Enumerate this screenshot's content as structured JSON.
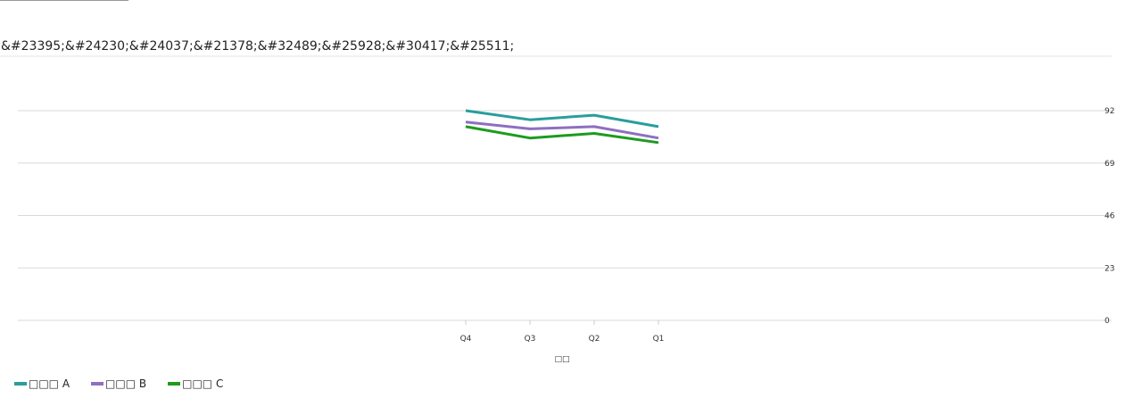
{
  "chart_data": {
    "type": "line",
    "title": "&#23395;&#24230;&#24037;&#21378;&#32489;&#25928;&#30417;&#25511;",
    "categories": [
      "Q4",
      "Q3",
      "Q2",
      "Q1"
    ],
    "xlabel": "□□",
    "ylabel": "",
    "y_ticks": [
      "0",
      "23",
      "46",
      "69",
      "92"
    ],
    "ylim": [
      0,
      92
    ],
    "grid": true,
    "legend_position": "bottom-left",
    "series": [
      {
        "name": "□□□ A",
        "color": "#2a9d9d",
        "values": [
          92,
          88,
          90,
          85
        ]
      },
      {
        "name": "□□□ B",
        "color": "#8e6fc1",
        "values": [
          87,
          84,
          85,
          80
        ]
      },
      {
        "name": "□□□ C",
        "color": "#1f9a1f",
        "values": [
          85,
          80,
          82,
          78
        ]
      }
    ]
  }
}
